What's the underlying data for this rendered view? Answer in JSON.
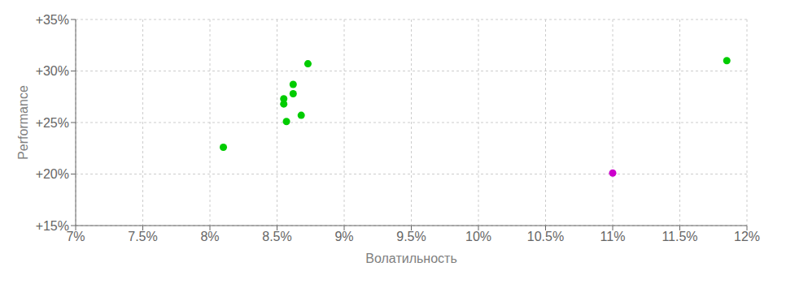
{
  "chart_data": {
    "type": "scatter",
    "xlabel": "Волатильность",
    "ylabel": "Performance",
    "xlim": [
      0.07,
      0.12
    ],
    "ylim": [
      0.15,
      0.35
    ],
    "xticks": [
      {
        "value": 0.07,
        "label": "7%"
      },
      {
        "value": 0.075,
        "label": "7.5%"
      },
      {
        "value": 0.08,
        "label": "8%"
      },
      {
        "value": 0.085,
        "label": "8.5%"
      },
      {
        "value": 0.09,
        "label": "9%"
      },
      {
        "value": 0.095,
        "label": "9.5%"
      },
      {
        "value": 0.1,
        "label": "10%"
      },
      {
        "value": 0.105,
        "label": "10.5%"
      },
      {
        "value": 0.11,
        "label": "11%"
      },
      {
        "value": 0.115,
        "label": "11.5%"
      },
      {
        "value": 0.12,
        "label": "12%"
      }
    ],
    "yticks": [
      {
        "value": 0.15,
        "label": "+15%"
      },
      {
        "value": 0.2,
        "label": "+20%"
      },
      {
        "value": 0.25,
        "label": "+25%"
      },
      {
        "value": 0.3,
        "label": "+30%"
      },
      {
        "value": 0.35,
        "label": "+35%"
      }
    ],
    "grid": true,
    "series": [
      {
        "color": "#00cc00",
        "x": [
          0.0873,
          0.0862,
          0.0862,
          0.0855,
          0.0855,
          0.0868,
          0.0857,
          0.081,
          0.1185
        ],
        "values": [
          0.307,
          0.287,
          0.278,
          0.273,
          0.268,
          0.257,
          0.251,
          0.226,
          0.31
        ]
      },
      {
        "color": "#cc00cc",
        "x": [
          0.11
        ],
        "values": [
          0.201
        ]
      }
    ]
  }
}
